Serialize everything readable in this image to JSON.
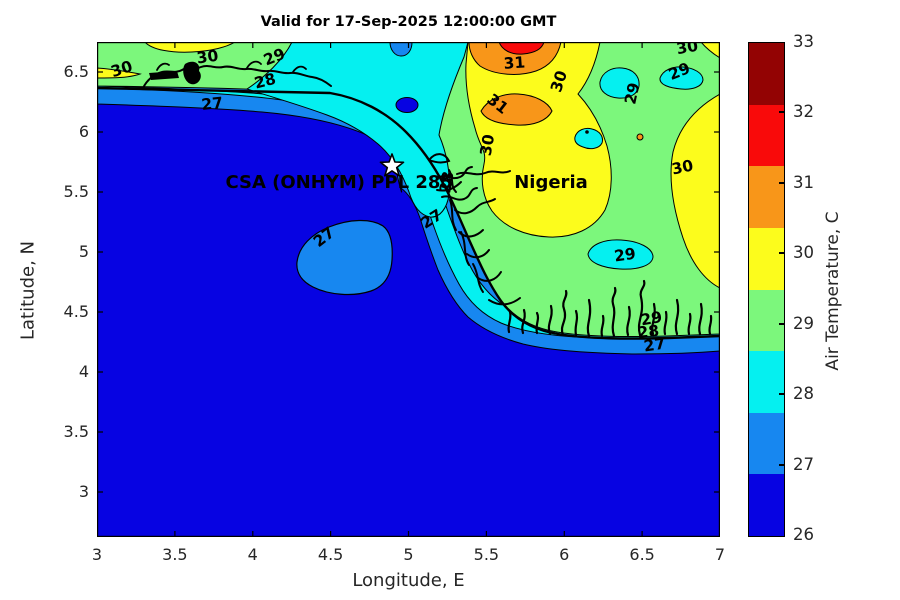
{
  "title": "Valid for 17-Sep-2025 12:00:00 GMT",
  "axes": {
    "xlabel": "Longitude, E",
    "ylabel": "Latitude, N",
    "xlim": [
      3,
      7
    ],
    "ylim": [
      2.625,
      6.75
    ],
    "xticks": [
      "3",
      "3.5",
      "4",
      "4.5",
      "5",
      "5.5",
      "6",
      "6.5",
      "7"
    ],
    "yticks": [
      "3",
      "3.5",
      "4",
      "4.5",
      "5",
      "5.5",
      "6",
      "6.5"
    ]
  },
  "colorbar": {
    "label": "Air Temperature, C",
    "ticks": [
      "26",
      "27",
      "28",
      "29",
      "30",
      "31",
      "32",
      "33"
    ],
    "min": 26,
    "max": 33
  },
  "colors": {
    "c26": "#0703E2",
    "c27": "#1787F0",
    "c28": "#05F0F0",
    "c29": "#7CF77C",
    "c30": "#FCFC1C",
    "c31": "#F89619",
    "c32": "#F90A0A",
    "c33": "#930303",
    "coastline": "#000000",
    "tick_text": "#262626"
  },
  "chart_data": {
    "type": "heatmap",
    "subtype": "filled-contour-map",
    "title": "Valid for 17-Sep-2025 12:00:00 GMT",
    "xlabel": "Longitude, E",
    "ylabel": "Latitude, N",
    "zlabel": "Air Temperature, C",
    "xrange_deg_E": [
      3,
      7
    ],
    "yrange_deg_N": [
      2.625,
      6.75
    ],
    "levels_C": [
      26,
      27,
      28,
      29,
      30,
      31,
      32,
      33
    ],
    "description": "Sea-surface/air temperature contour map of the Gulf of Guinea off Nigeria: open sea 26-27C (dark blue), warming bands 27-28C and 28-29C along the coast, land mostly 29-30C (green) with 30-31C (yellow) and 31-32C (orange/red) pockets in the north-east",
    "contour_labels": [
      {
        "value": "30",
        "lon": 3.16,
        "lat": 6.52,
        "rot": -18
      },
      {
        "value": "30",
        "lon": 3.71,
        "lat": 6.62,
        "rot": -8
      },
      {
        "value": "29",
        "lon": 4.14,
        "lat": 6.62,
        "rot": -22
      },
      {
        "value": "28",
        "lon": 4.08,
        "lat": 6.42,
        "rot": -14
      },
      {
        "value": "27",
        "lon": 3.74,
        "lat": 6.23,
        "rot": -6
      },
      {
        "value": "31",
        "lon": 5.68,
        "lat": 6.57,
        "rot": -4
      },
      {
        "value": "31",
        "lon": 5.57,
        "lat": 6.23,
        "rot": 38
      },
      {
        "value": "30",
        "lon": 5.97,
        "lat": 6.42,
        "rot": -72
      },
      {
        "value": "30",
        "lon": 6.79,
        "lat": 6.7,
        "rot": -10
      },
      {
        "value": "29",
        "lon": 6.74,
        "lat": 6.5,
        "rot": -22
      },
      {
        "value": "29",
        "lon": 6.44,
        "lat": 6.32,
        "rot": -78
      },
      {
        "value": "30",
        "lon": 5.51,
        "lat": 5.89,
        "rot": -80
      },
      {
        "value": "28",
        "lon": 5.25,
        "lat": 5.58,
        "rot": -80
      },
      {
        "value": "30",
        "lon": 6.76,
        "lat": 5.7,
        "rot": -12
      },
      {
        "value": "27",
        "lon": 4.46,
        "lat": 5.12,
        "rot": -38
      },
      {
        "value": "27",
        "lon": 5.15,
        "lat": 5.27,
        "rot": -32
      },
      {
        "value": "29",
        "lon": 6.39,
        "lat": 4.97,
        "rot": -8
      },
      {
        "value": "29",
        "lon": 6.56,
        "lat": 4.44,
        "rot": -10
      },
      {
        "value": "28",
        "lon": 6.54,
        "lat": 4.33,
        "rot": -6
      },
      {
        "value": "27",
        "lon": 6.58,
        "lat": 4.22,
        "rot": -8
      }
    ],
    "annotations": [
      {
        "text": "CSA (ONHYM) PPL 285",
        "lon": 4.555,
        "lat": 5.575
      },
      {
        "text": "Nigeria",
        "lon": 5.915,
        "lat": 5.575
      }
    ],
    "marker": {
      "shape": "star",
      "lon": 4.895,
      "lat": 5.715
    }
  }
}
